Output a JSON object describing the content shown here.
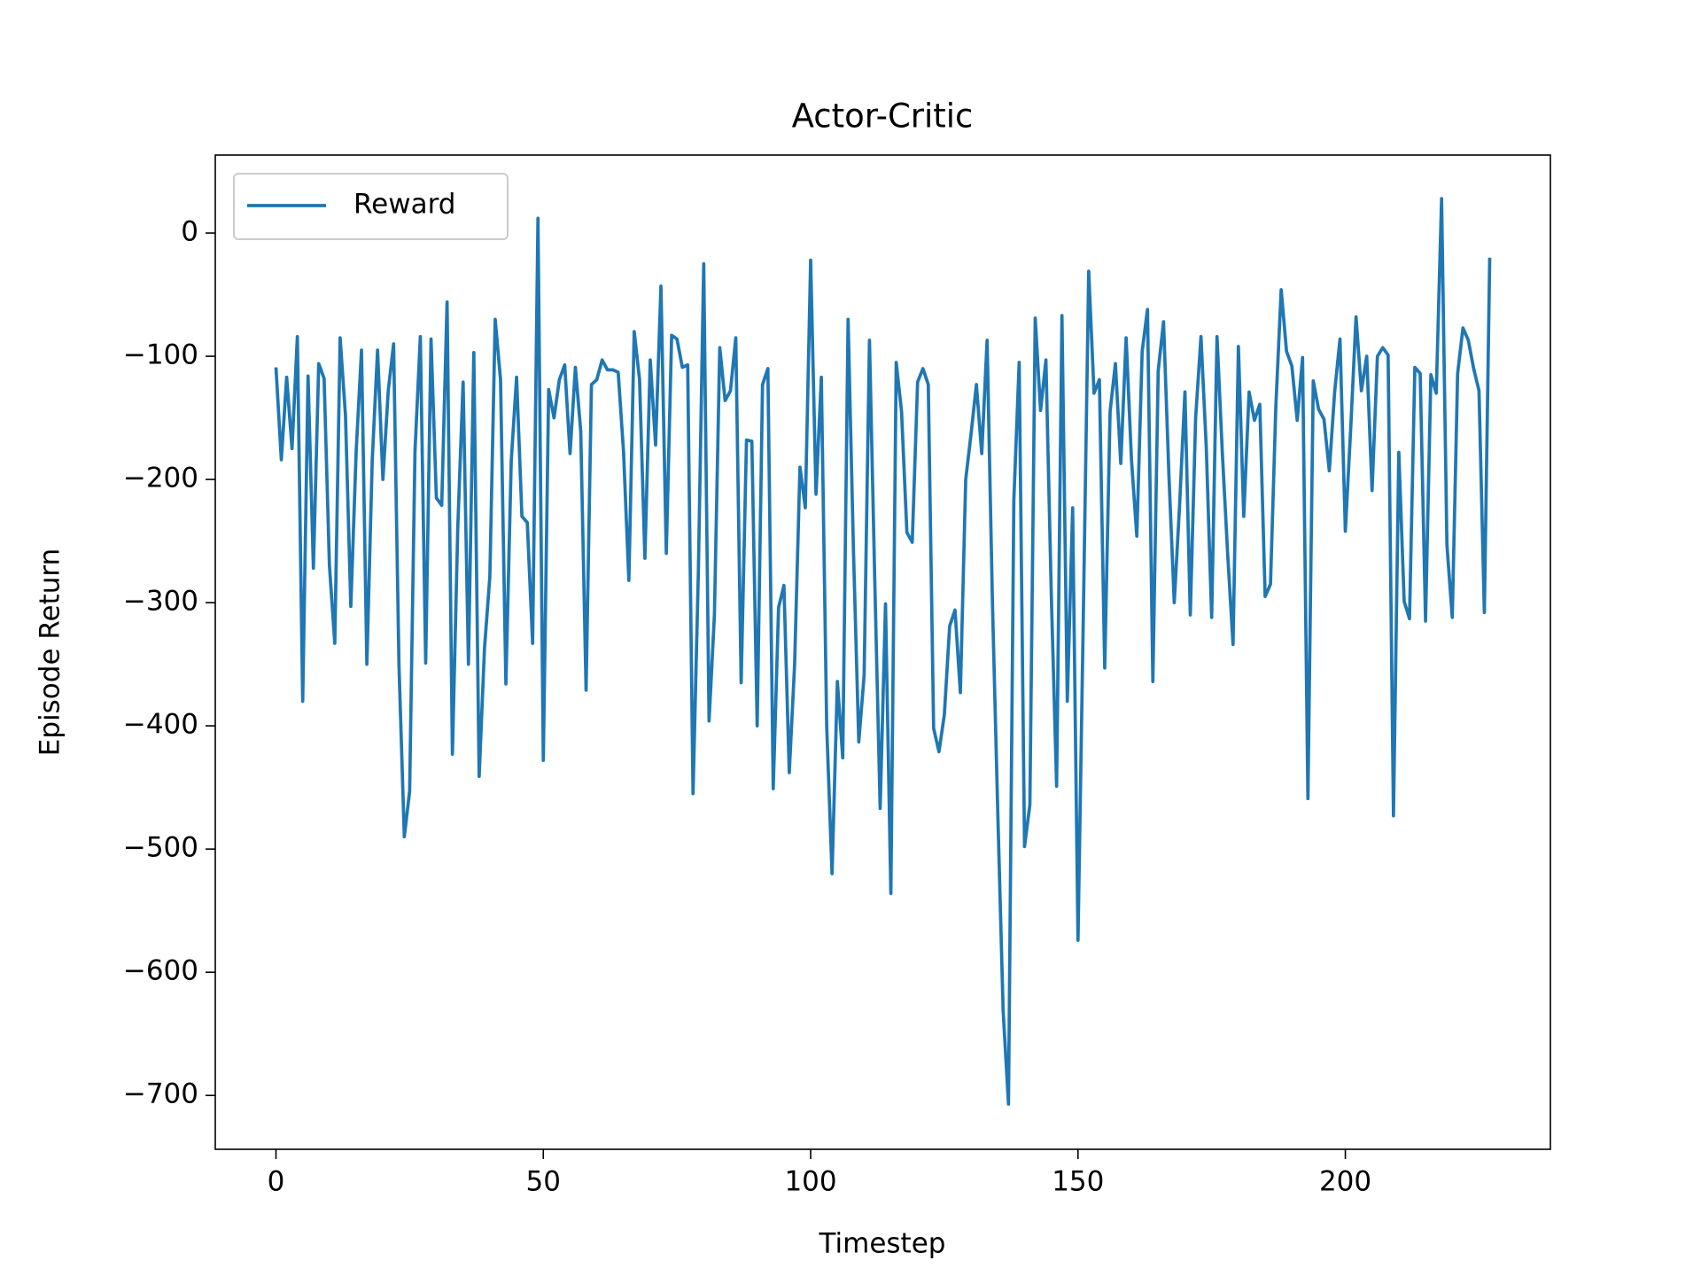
{
  "chart_data": {
    "type": "line",
    "title": "Actor-Critic",
    "x_label": "Timestep",
    "y_label": "Episode Return",
    "legend": "upper left",
    "x": [
      0,
      1,
      2,
      3,
      4,
      5,
      6,
      7,
      8,
      9,
      10,
      11,
      12,
      13,
      14,
      15,
      16,
      17,
      18,
      19,
      20,
      21,
      22,
      23,
      24,
      25,
      26,
      27,
      28,
      29,
      30,
      31,
      32,
      33,
      34,
      35,
      36,
      37,
      38,
      39,
      40,
      41,
      42,
      43,
      44,
      45,
      46,
      47,
      48,
      49,
      50,
      51,
      52,
      53,
      54,
      55,
      56,
      57,
      58,
      59,
      60,
      61,
      62,
      63,
      64,
      65,
      66,
      67,
      68,
      69,
      70,
      71,
      72,
      73,
      74,
      75,
      76,
      77,
      78,
      79,
      80,
      81,
      82,
      83,
      84,
      85,
      86,
      87,
      88,
      89,
      90,
      91,
      92,
      93,
      94,
      95,
      96,
      97,
      98,
      99,
      100,
      101,
      102,
      103,
      104,
      105,
      106,
      107,
      108,
      109,
      110,
      111,
      112,
      113,
      114,
      115,
      116,
      117,
      118,
      119,
      120,
      121,
      122,
      123,
      124,
      125,
      126,
      127,
      128,
      129,
      130,
      131,
      132,
      133,
      134,
      135,
      136,
      137,
      138,
      139,
      140,
      141,
      142,
      143,
      144,
      145,
      146,
      147,
      148,
      149,
      150,
      151,
      152,
      153,
      154,
      155,
      156,
      157,
      158,
      159,
      160,
      161,
      162,
      163,
      164,
      165,
      166,
      167,
      168,
      169,
      170,
      171,
      172,
      173,
      174,
      175,
      176,
      177,
      178,
      179,
      180,
      181,
      182,
      183,
      184,
      185,
      186,
      187,
      188,
      189,
      190,
      191,
      192,
      193,
      194,
      195,
      196,
      197,
      198,
      199,
      200,
      201,
      202,
      203,
      204,
      205,
      206,
      207,
      208,
      209,
      210,
      211,
      212,
      213,
      214,
      215,
      216,
      217,
      218,
      219,
      220,
      221,
      222,
      223,
      224,
      225,
      226,
      227
    ],
    "series": [
      {
        "name": "Reward",
        "color": "#1f77b4",
        "values": [
          -109,
          -184,
          -117,
          -175,
          -84,
          -380,
          -116,
          -272,
          -106,
          -118,
          -270,
          -333,
          -85,
          -148,
          -303,
          -177,
          -95,
          -350,
          -185,
          -95,
          -200,
          -128,
          -90,
          -350,
          -490,
          -453,
          -177,
          -84,
          -349,
          -86,
          -215,
          -221,
          -56,
          -423,
          -239,
          -121,
          -350,
          -97,
          -441,
          -337,
          -279,
          -70,
          -119,
          -366,
          -185,
          -117,
          -230,
          -235,
          -333,
          12,
          -428,
          -127,
          -150,
          -119,
          -107,
          -179,
          -109,
          -161,
          -371,
          -123,
          -119,
          -103,
          -111,
          -111,
          -113,
          -177,
          -282,
          -80,
          -119,
          -264,
          -103,
          -172,
          -43,
          -260,
          -83,
          -86,
          -109,
          -107,
          -455,
          -275,
          -25,
          -396,
          -310,
          -93,
          -136,
          -128,
          -85,
          -365,
          -168,
          -169,
          -400,
          -123,
          -110,
          -451,
          -304,
          -286,
          -438,
          -350,
          -190,
          -223,
          -22,
          -212,
          -117,
          -400,
          -520,
          -364,
          -426,
          -70,
          -257,
          -413,
          -359,
          -87,
          -284,
          -467,
          -301,
          -536,
          -105,
          -145,
          -243,
          -251,
          -121,
          -110,
          -123,
          -402,
          -421,
          -391,
          -319,
          -306,
          -373,
          -200,
          -163,
          -123,
          -179,
          -87,
          -300,
          -471,
          -631,
          -707,
          -217,
          -105,
          -498,
          -464,
          -69,
          -144,
          -103,
          -292,
          -449,
          -67,
          -380,
          -223,
          -574,
          -310,
          -31,
          -130,
          -119,
          -353,
          -145,
          -106,
          -187,
          -85,
          -184,
          -246,
          -96,
          -62,
          -364,
          -112,
          -72,
          -196,
          -300,
          -221,
          -129,
          -310,
          -150,
          -84,
          -175,
          -312,
          -84,
          -179,
          -261,
          -334,
          -92,
          -230,
          -129,
          -152,
          -139,
          -295,
          -285,
          -141,
          -46,
          -96,
          -108,
          -152,
          -101,
          -459,
          -120,
          -143,
          -151,
          -193,
          -129,
          -86,
          -242,
          -159,
          -68,
          -128,
          -100,
          -209,
          -100,
          -93,
          -99,
          -473,
          -178,
          -299,
          -313,
          -109,
          -114,
          -315,
          -115,
          -130,
          28,
          -253,
          -312,
          -114,
          -77,
          -87,
          -110,
          -128,
          -308,
          -20
        ]
      }
    ],
    "xlim": [
      -11.35,
      238.35
    ],
    "ylim": [
      -743.7,
      63.3
    ],
    "xticks": [
      0,
      50,
      100,
      150,
      200
    ],
    "yticks": [
      {
        "value": -700,
        "label": "−700"
      },
      {
        "value": -600,
        "label": "−600"
      },
      {
        "value": -500,
        "label": "−500"
      },
      {
        "value": -400,
        "label": "−400"
      },
      {
        "value": -300,
        "label": "−300"
      },
      {
        "value": -200,
        "label": "−200"
      },
      {
        "value": -100,
        "label": "−100"
      },
      0
    ],
    "grid": false
  }
}
